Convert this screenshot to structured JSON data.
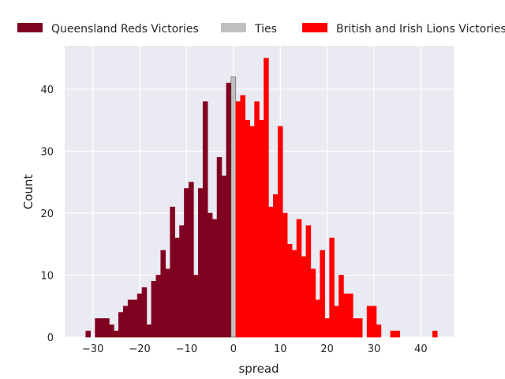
{
  "chart_data": {
    "type": "bar",
    "title": "",
    "xlabel": "spread",
    "ylabel": "Count",
    "xlim": [
      -36,
      47
    ],
    "ylim": [
      0,
      47
    ],
    "xticks": [
      -30,
      -20,
      -10,
      0,
      10,
      20,
      30,
      40
    ],
    "yticks": [
      0,
      10,
      20,
      30,
      40
    ],
    "grid": true,
    "legend_position": "top",
    "series": [
      {
        "name": "Queensland Reds Victories",
        "color": "#800020",
        "points": [
          [
            -31,
            1
          ],
          [
            -29,
            3
          ],
          [
            -28,
            3
          ],
          [
            -27,
            3
          ],
          [
            -26,
            2
          ],
          [
            -25,
            1
          ],
          [
            -24,
            4
          ],
          [
            -23,
            5
          ],
          [
            -22,
            6
          ],
          [
            -21,
            6
          ],
          [
            -20,
            7
          ],
          [
            -19,
            8
          ],
          [
            -18,
            2
          ],
          [
            -17,
            9
          ],
          [
            -16,
            10
          ],
          [
            -15,
            14
          ],
          [
            -14,
            11
          ],
          [
            -13,
            21
          ],
          [
            -12,
            16
          ],
          [
            -11,
            18
          ],
          [
            -10,
            24
          ],
          [
            -9,
            25
          ],
          [
            -8,
            10
          ],
          [
            -7,
            24
          ],
          [
            -6,
            38
          ],
          [
            -5,
            20
          ],
          [
            -4,
            19
          ],
          [
            -3,
            29
          ],
          [
            -2,
            26
          ],
          [
            -1,
            41
          ]
        ]
      },
      {
        "name": "Ties",
        "color": "#c0c0c0",
        "points": [
          [
            0,
            42
          ]
        ]
      },
      {
        "name": "British and Irish Lions Victories",
        "color": "#ff0000",
        "points": [
          [
            1,
            38
          ],
          [
            2,
            39
          ],
          [
            3,
            35
          ],
          [
            4,
            34
          ],
          [
            5,
            38
          ],
          [
            6,
            35
          ],
          [
            7,
            45
          ],
          [
            8,
            21
          ],
          [
            9,
            23
          ],
          [
            10,
            34
          ],
          [
            11,
            20
          ],
          [
            12,
            15
          ],
          [
            13,
            14
          ],
          [
            14,
            19
          ],
          [
            15,
            13
          ],
          [
            16,
            18
          ],
          [
            17,
            11
          ],
          [
            18,
            6
          ],
          [
            19,
            14
          ],
          [
            20,
            3
          ],
          [
            21,
            16
          ],
          [
            22,
            5
          ],
          [
            23,
            10
          ],
          [
            24,
            7
          ],
          [
            25,
            7
          ],
          [
            26,
            3
          ],
          [
            27,
            3
          ],
          [
            29,
            5
          ],
          [
            30,
            5
          ],
          [
            31,
            2
          ],
          [
            34,
            1
          ],
          [
            35,
            1
          ],
          [
            43,
            1
          ]
        ]
      }
    ]
  }
}
